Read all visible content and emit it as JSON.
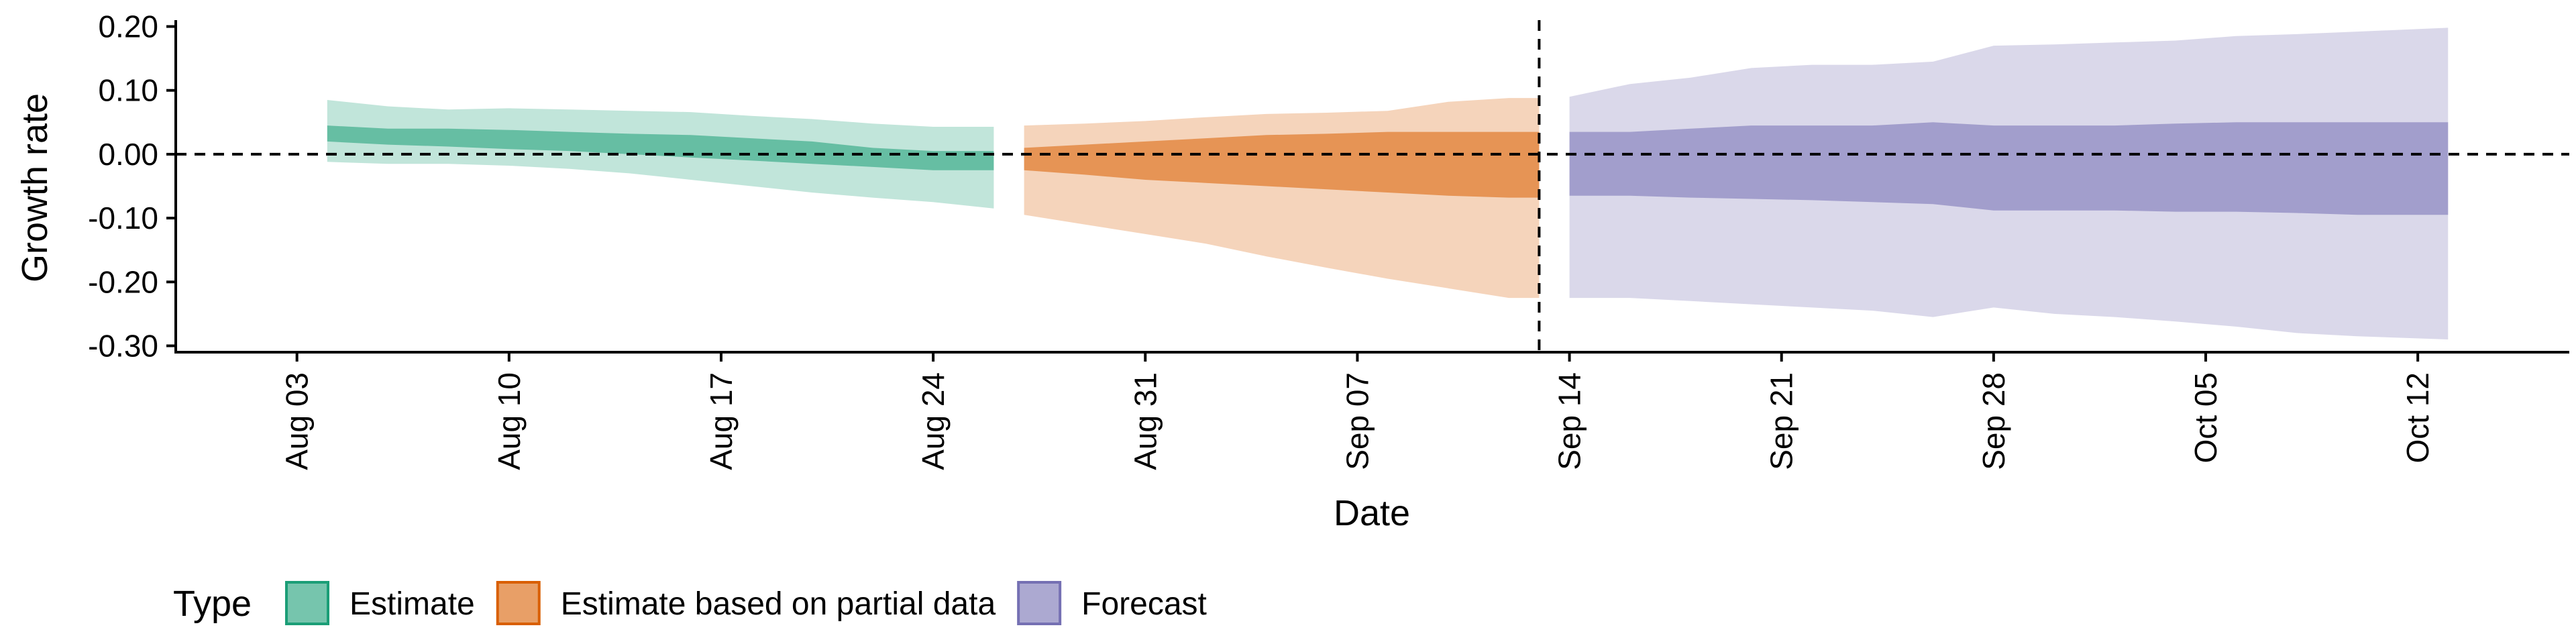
{
  "chart_data": {
    "type": "area",
    "xlabel": "Date",
    "ylabel": "Growth rate",
    "x_range": [
      "2020-07-30",
      "2020-10-17"
    ],
    "ylim": [
      -0.31,
      0.21
    ],
    "y_ticks": [
      -0.3,
      -0.2,
      -0.1,
      0.0,
      0.1,
      0.2
    ],
    "y_tick_labels": [
      "-0.30",
      "-0.20",
      "-0.10",
      "0.00",
      "0.10",
      "0.20"
    ],
    "x_ticks": [
      "2020-08-03",
      "2020-08-10",
      "2020-08-17",
      "2020-08-24",
      "2020-08-31",
      "2020-09-07",
      "2020-09-14",
      "2020-09-21",
      "2020-09-28",
      "2020-10-05",
      "2020-10-12"
    ],
    "x_tick_labels": [
      "Aug 03",
      "Aug 10",
      "Aug 17",
      "Aug 24",
      "Aug 31",
      "Sep 07",
      "Sep 14",
      "Sep 21",
      "Sep 28",
      "Oct 05",
      "Oct 12"
    ],
    "reference_lines": {
      "horizontal_y": 0.0,
      "vertical_x": "2020-09-13"
    },
    "grid": false,
    "legend": {
      "title": "Type",
      "position": "bottom-left"
    },
    "series": [
      {
        "name": "Estimate",
        "color": "#1B9E77",
        "dates": [
          "2020-08-04",
          "2020-08-06",
          "2020-08-08",
          "2020-08-10",
          "2020-08-12",
          "2020-08-14",
          "2020-08-16",
          "2020-08-18",
          "2020-08-20",
          "2020-08-22",
          "2020-08-24",
          "2020-08-26"
        ],
        "outer_upper": [
          0.085,
          0.075,
          0.07,
          0.072,
          0.07,
          0.068,
          0.066,
          0.06,
          0.055,
          0.048,
          0.043,
          0.043
        ],
        "outer_lower": [
          -0.012,
          -0.015,
          -0.015,
          -0.018,
          -0.023,
          -0.03,
          -0.04,
          -0.05,
          -0.06,
          -0.068,
          -0.075,
          -0.085
        ],
        "inner_upper": [
          0.045,
          0.04,
          0.04,
          0.038,
          0.035,
          0.032,
          0.03,
          0.025,
          0.02,
          0.01,
          0.005,
          0.005
        ],
        "inner_lower": [
          0.02,
          0.015,
          0.012,
          0.008,
          0.005,
          0.0,
          -0.005,
          -0.01,
          -0.015,
          -0.02,
          -0.025,
          -0.025
        ]
      },
      {
        "name": "Estimate based on partial data",
        "color": "#D95F02",
        "dates": [
          "2020-08-27",
          "2020-08-29",
          "2020-08-31",
          "2020-09-02",
          "2020-09-04",
          "2020-09-06",
          "2020-09-08",
          "2020-09-10",
          "2020-09-12",
          "2020-09-13"
        ],
        "outer_upper": [
          0.045,
          0.048,
          0.052,
          0.058,
          0.063,
          0.065,
          0.068,
          0.082,
          0.088,
          0.088
        ],
        "outer_lower": [
          -0.095,
          -0.11,
          -0.125,
          -0.14,
          -0.16,
          -0.178,
          -0.195,
          -0.21,
          -0.225,
          -0.225
        ],
        "inner_upper": [
          0.01,
          0.015,
          0.02,
          0.025,
          0.03,
          0.032,
          0.035,
          0.035,
          0.035,
          0.035
        ],
        "inner_lower": [
          -0.025,
          -0.032,
          -0.04,
          -0.045,
          -0.05,
          -0.055,
          -0.06,
          -0.065,
          -0.068,
          -0.068
        ]
      },
      {
        "name": "Forecast",
        "color": "#7570B3",
        "dates": [
          "2020-09-14",
          "2020-09-16",
          "2020-09-18",
          "2020-09-20",
          "2020-09-22",
          "2020-09-24",
          "2020-09-26",
          "2020-09-28",
          "2020-09-30",
          "2020-10-02",
          "2020-10-04",
          "2020-10-06",
          "2020-10-08",
          "2020-10-10",
          "2020-10-13"
        ],
        "outer_upper": [
          0.09,
          0.11,
          0.12,
          0.135,
          0.14,
          0.14,
          0.145,
          0.17,
          0.172,
          0.175,
          0.178,
          0.185,
          0.188,
          0.192,
          0.198
        ],
        "outer_lower": [
          -0.225,
          -0.225,
          -0.23,
          -0.235,
          -0.24,
          -0.245,
          -0.255,
          -0.24,
          -0.25,
          -0.255,
          -0.262,
          -0.27,
          -0.28,
          -0.285,
          -0.29
        ],
        "inner_upper": [
          0.035,
          0.035,
          0.04,
          0.045,
          0.045,
          0.045,
          0.05,
          0.045,
          0.045,
          0.045,
          0.048,
          0.05,
          0.05,
          0.05,
          0.05
        ],
        "inner_lower": [
          -0.065,
          -0.065,
          -0.068,
          -0.07,
          -0.072,
          -0.075,
          -0.078,
          -0.088,
          -0.088,
          -0.088,
          -0.09,
          -0.09,
          -0.092,
          -0.095,
          -0.095
        ]
      }
    ]
  }
}
